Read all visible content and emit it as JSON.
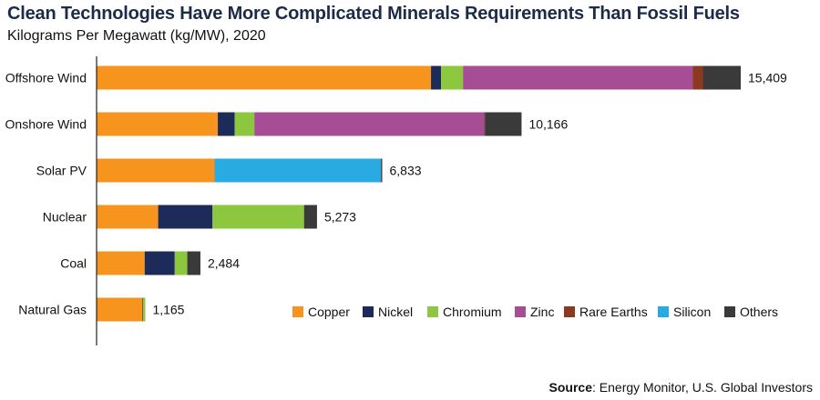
{
  "header": {
    "title": "Clean Technologies Have More Complicated Minerals Requirements Than Fossil Fuels",
    "subtitle": "Kilograms Per Megawatt (kg/MW), 2020"
  },
  "footer": {
    "source_label": "Source",
    "source_text": ": Energy Monitor, U.S. Global Investors"
  },
  "colors": {
    "Copper": "#f7941d",
    "Nickel": "#1c2b5a",
    "Chromium": "#8dc63f",
    "Zinc": "#a64d96",
    "Rare Earths": "#8b3a1f",
    "Silicon": "#29abe2",
    "Others": "#3a3a3a"
  },
  "chart_data": {
    "type": "bar",
    "orientation": "horizontal",
    "stacked": true,
    "title": "Clean Technologies Have More Complicated Minerals Requirements Than Fossil Fuels",
    "subtitle": "Kilograms Per Megawatt (kg/MW), 2020",
    "categories": [
      "Offshore Wind",
      "Onshore Wind",
      "Solar PV",
      "Nuclear",
      "Coal",
      "Natural Gas"
    ],
    "totals": [
      15409,
      10166,
      6833,
      5273,
      2484,
      1165
    ],
    "total_labels": [
      "15,409",
      "10,166",
      "6,833",
      "5,273",
      "2,484",
      "1,165"
    ],
    "series": [
      {
        "name": "Copper",
        "values": [
          8000,
          2900,
          2822,
          1473,
          1150,
          1100
        ]
      },
      {
        "name": "Nickel",
        "values": [
          240,
          404,
          1,
          1300,
          720,
          16
        ]
      },
      {
        "name": "Chromium",
        "values": [
          525,
          470,
          0,
          2190,
          300,
          48
        ]
      },
      {
        "name": "Zinc",
        "values": [
          5500,
          5500,
          0,
          0,
          0,
          0
        ]
      },
      {
        "name": "Rare Earths",
        "values": [
          239,
          14,
          0,
          0,
          0,
          0
        ]
      },
      {
        "name": "Silicon",
        "values": [
          0,
          0,
          3980,
          0,
          0,
          0
        ]
      },
      {
        "name": "Others",
        "values": [
          905,
          878,
          30,
          310,
          314,
          1
        ]
      }
    ],
    "xlim": [
      0,
      17000
    ],
    "grid": false,
    "legend_position": "bottom-right"
  }
}
